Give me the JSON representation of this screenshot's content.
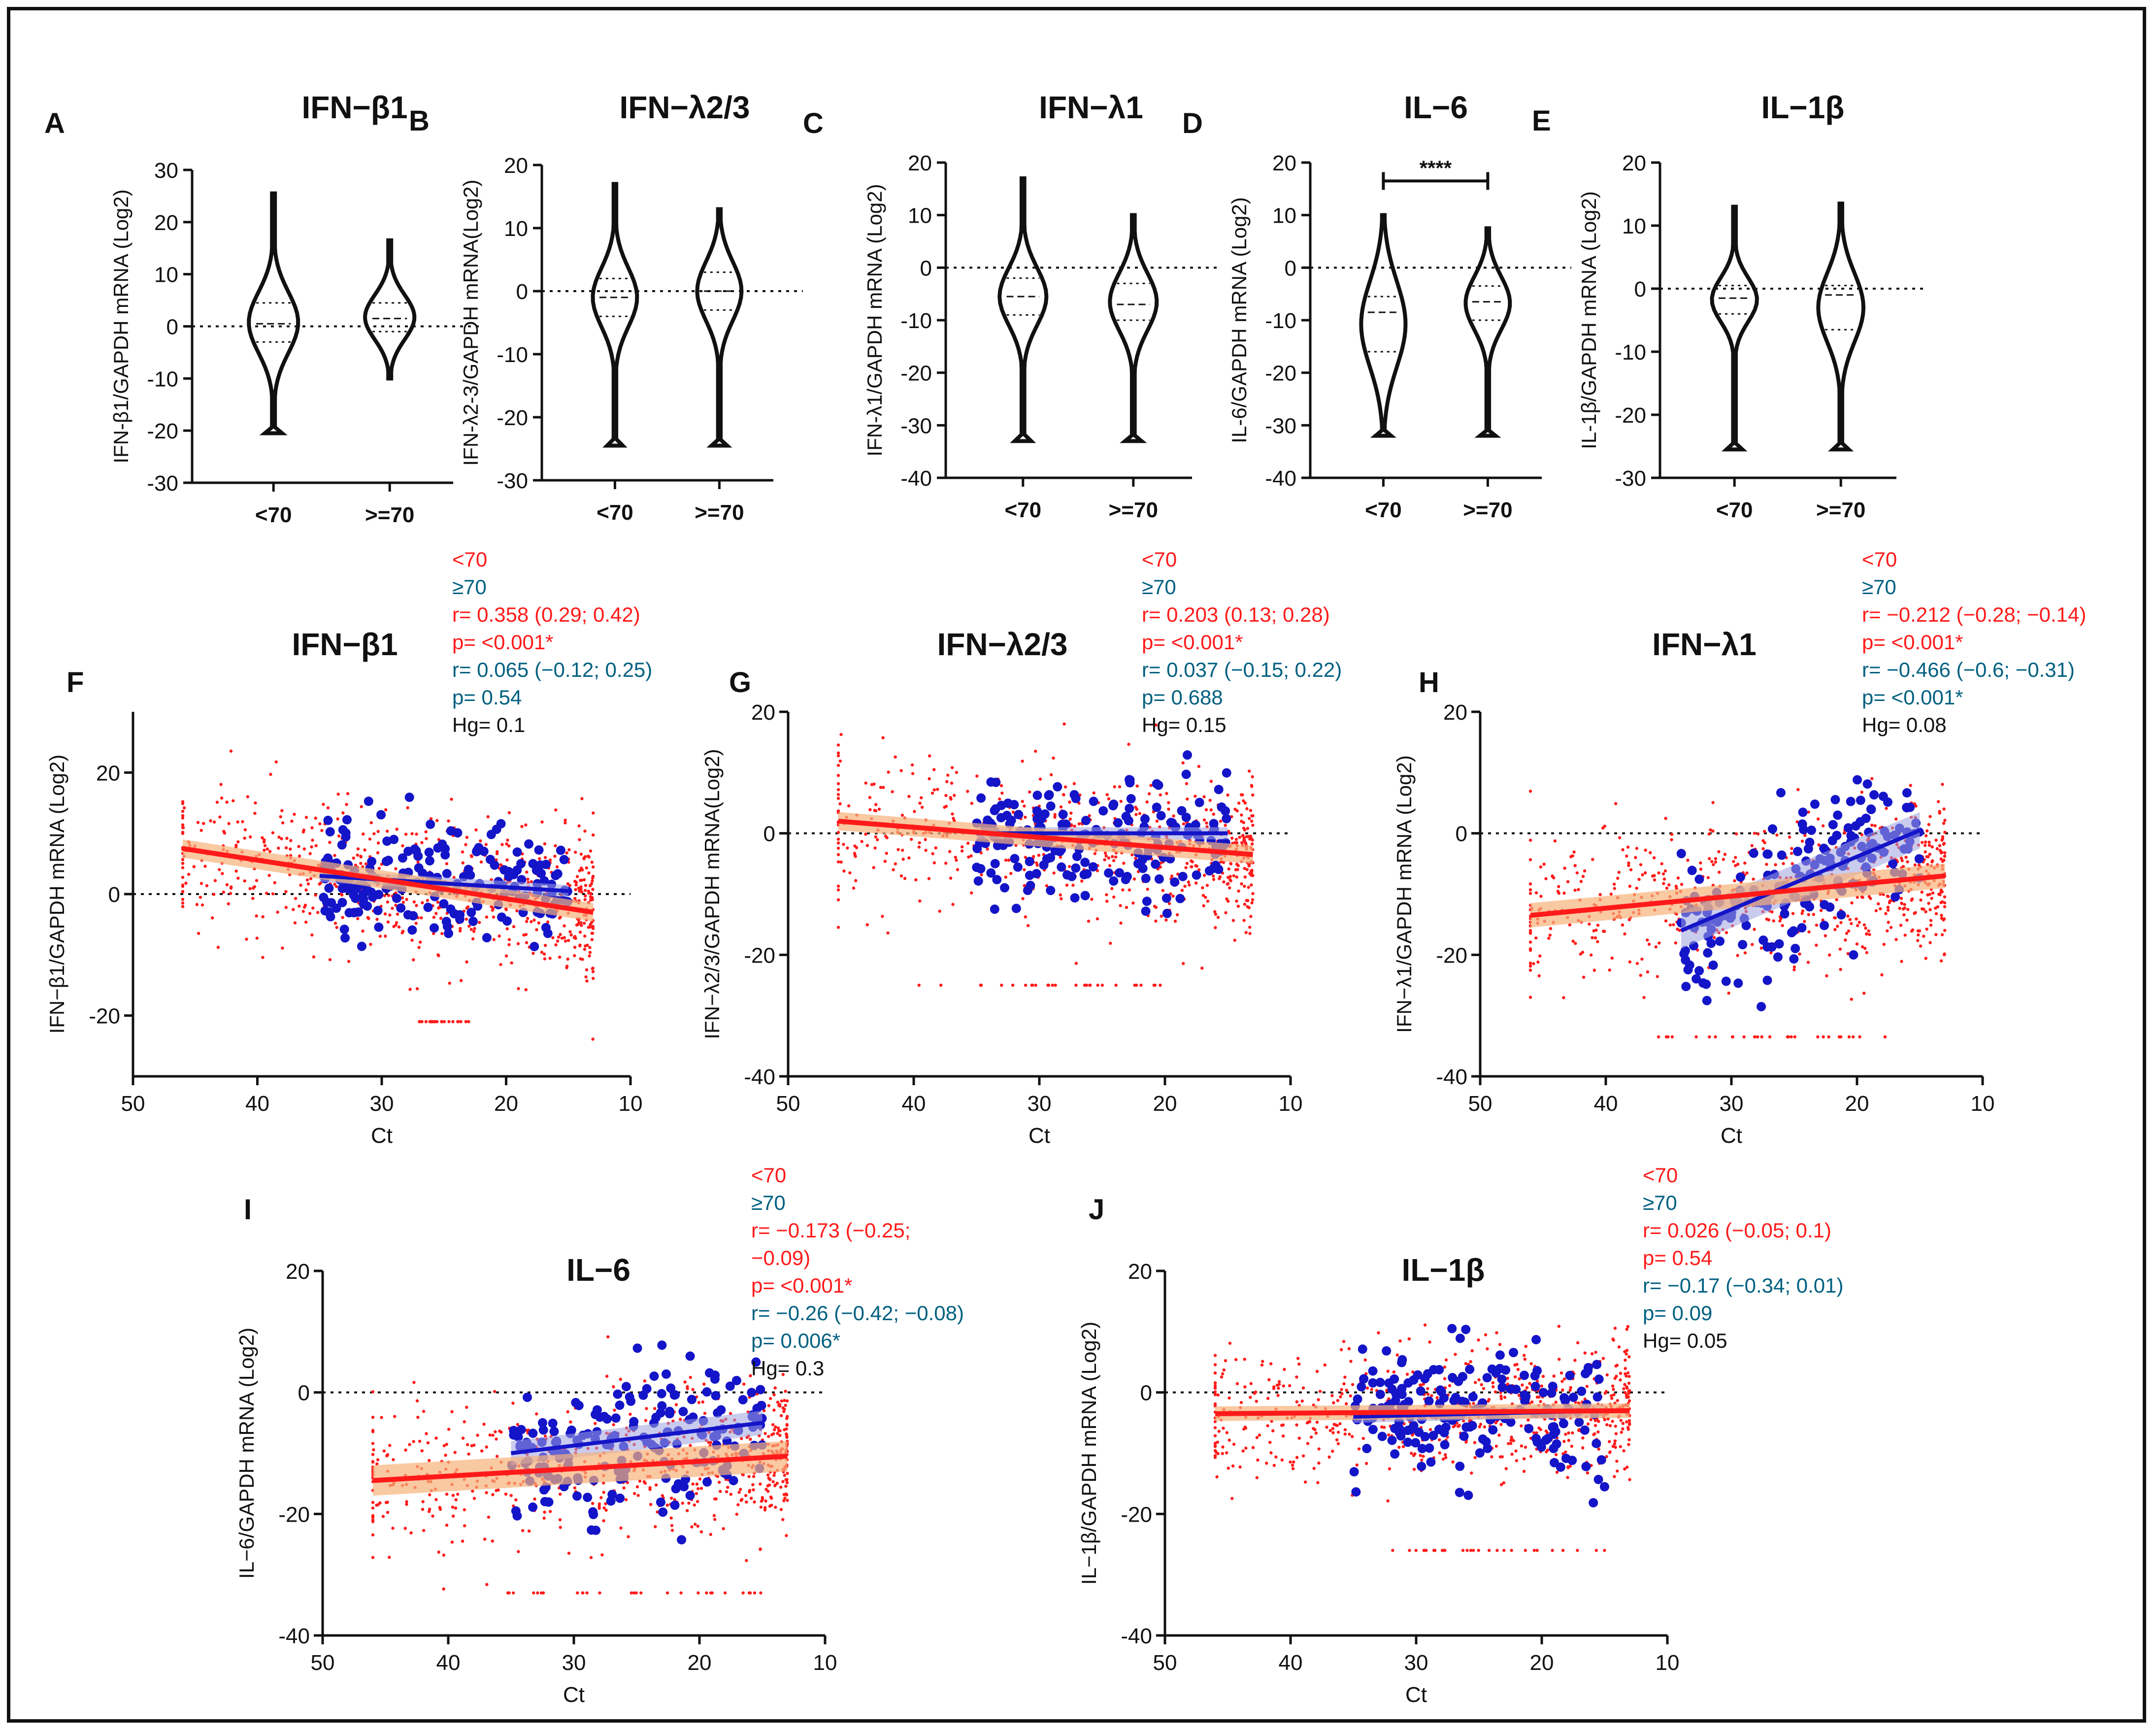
{
  "figure": {
    "frame_color": "#111111"
  },
  "colors": {
    "under70": "#ff1a1a",
    "over70": "#1414c8",
    "stat_under70": "#ff1a1a",
    "stat_over70": "#006080",
    "stat_hg": "#111111",
    "band_under70": "#f7b27a",
    "band_over70": "#9fa3e0"
  },
  "chart_data": [
    {
      "panel": "A",
      "type": "violin",
      "title": "IFN−β1",
      "ylabel": "IFN-β1/GAPDH mRNA (Log2)",
      "categories": [
        "<70",
        ">=70"
      ],
      "ylim": [
        -30,
        30
      ],
      "yticks": [
        30,
        20,
        10,
        0,
        -10,
        -20,
        -30
      ],
      "groups": [
        {
          "name": "<70",
          "min": -20.5,
          "q1": -3,
          "median": 0.5,
          "q3": 4.5,
          "max": 25.5
        },
        {
          "name": ">=70",
          "min": -10,
          "q1": -1,
          "median": 1.5,
          "q3": 4.5,
          "max": 16.5
        }
      ]
    },
    {
      "panel": "B",
      "type": "violin",
      "title": "IFN−λ2/3",
      "ylabel": "IFN-λ2-3/GAPDH mRNA(Log2)",
      "categories": [
        "<70",
        ">=70"
      ],
      "ylim": [
        -30,
        20
      ],
      "yticks": [
        20,
        10,
        0,
        -10,
        -20,
        -30
      ],
      "groups": [
        {
          "name": "<70",
          "min": -24.5,
          "q1": -4,
          "median": -1,
          "q3": 2,
          "max": 17
        },
        {
          "name": ">=70",
          "min": -24.5,
          "q1": -3,
          "median": 0,
          "q3": 3,
          "max": 13
        }
      ]
    },
    {
      "panel": "C",
      "type": "violin",
      "title": "IFN−λ1",
      "ylabel": "IFN-λ1/GAPDH mRNA (Log2)",
      "categories": [
        "<70",
        ">=70"
      ],
      "ylim": [
        -40,
        20
      ],
      "yticks": [
        20,
        10,
        0,
        -10,
        -20,
        -30,
        -40
      ],
      "groups": [
        {
          "name": "<70",
          "min": -33,
          "q1": -9,
          "median": -5.5,
          "q3": -2,
          "max": 17
        },
        {
          "name": ">=70",
          "min": -33,
          "q1": -10,
          "median": -7,
          "q3": -3,
          "max": 10
        }
      ]
    },
    {
      "panel": "D",
      "type": "violin",
      "title": "IL−6",
      "ylabel": "IL-6/GAPDH mRNA (Log2)",
      "categories": [
        "<70",
        ">=70"
      ],
      "ylim": [
        -40,
        20
      ],
      "yticks": [
        20,
        10,
        0,
        -10,
        -20,
        -30,
        -40
      ],
      "significance": "****",
      "groups": [
        {
          "name": "<70",
          "min": -32,
          "q1": -16,
          "median": -8.5,
          "q3": -5.5,
          "max": 10
        },
        {
          "name": ">=70",
          "min": -32,
          "q1": -10,
          "median": -6.5,
          "q3": -3.5,
          "max": 7.5
        }
      ]
    },
    {
      "panel": "E",
      "type": "violin",
      "title": "IL−1β",
      "ylabel": "IL-1β/GAPDH mRNA (Log2)",
      "categories": [
        "<70",
        ">=70"
      ],
      "ylim": [
        -30,
        20
      ],
      "yticks": [
        20,
        10,
        0,
        -10,
        -20,
        -30
      ],
      "groups": [
        {
          "name": "<70",
          "min": -25.5,
          "q1": -4,
          "median": -1.5,
          "q3": 0.5,
          "max": 13
        },
        {
          "name": ">=70",
          "min": -25.5,
          "q1": -6.5,
          "median": -1,
          "q3": 0.5,
          "max": 13.5
        }
      ]
    },
    {
      "panel": "F",
      "type": "scatter",
      "title": "IFN−β1",
      "xlabel": "Ct",
      "ylabel": "IFN−β1/GAPDH mRNA (Log2)",
      "xlim": [
        50,
        10
      ],
      "ylim": [
        -30,
        30
      ],
      "xticks": [
        50,
        40,
        30,
        20,
        10
      ],
      "yticks": [
        20,
        0,
        -20
      ],
      "series": [
        {
          "name": "<70",
          "fit": [
            [
              46,
              7.5
            ],
            [
              13,
              -3
            ]
          ],
          "band": 1.5,
          "xrange": [
            13,
            46
          ],
          "spread": 6,
          "lowfloor": [
            -21,
            [
              23,
              27
            ]
          ]
        },
        {
          "name": "≥70",
          "fit": [
            [
              35,
              3
            ],
            [
              15,
              0.5
            ]
          ],
          "band": 1.0,
          "xrange": [
            15,
            35
          ],
          "spread": 5
        }
      ],
      "stats": [
        "<70",
        "≥70",
        "r= 0.358 (0.29; 0.42)",
        "p= <0.001*",
        "r= 0.065 (−0.12; 0.25)",
        "p= 0.54",
        "Hg= 0.1"
      ]
    },
    {
      "panel": "G",
      "type": "scatter",
      "title": "IFN−λ2/3",
      "xlabel": "Ct",
      "ylabel": "IFN−λ2/3/GAPDH mRNA(Log2)",
      "xlim": [
        50,
        10
      ],
      "ylim": [
        -40,
        20
      ],
      "xticks": [
        50,
        40,
        30,
        20,
        10
      ],
      "yticks": [
        20,
        0,
        -20,
        -40
      ],
      "series": [
        {
          "name": "<70",
          "fit": [
            [
              46,
              2
            ],
            [
              13,
              -3.5
            ]
          ],
          "band": 1.5,
          "xrange": [
            13,
            46
          ],
          "spread": 6,
          "lowfloor": [
            -25,
            [
              20,
              40
            ]
          ]
        },
        {
          "name": "≥70",
          "fit": [
            [
              35,
              0
            ],
            [
              15,
              0
            ]
          ],
          "band": 1.0,
          "xrange": [
            15,
            35
          ],
          "spread": 5
        }
      ],
      "stats": [
        "<70",
        "≥70",
        "r= 0.203 (0.13; 0.28)",
        "p= <0.001*",
        "r= 0.037 (−0.15; 0.22)",
        "p= 0.688",
        "Hg= 0.15"
      ]
    },
    {
      "panel": "H",
      "type": "scatter",
      "title": "IFN−λ1",
      "xlabel": "Ct",
      "ylabel": "IFN−λ1/GAPDH mRNA (Log2)",
      "xlim": [
        50,
        10
      ],
      "ylim": [
        -40,
        20
      ],
      "xticks": [
        50,
        40,
        30,
        20,
        10
      ],
      "yticks": [
        20,
        0,
        -20,
        -40
      ],
      "series": [
        {
          "name": "<70",
          "fit": [
            [
              46,
              -13.5
            ],
            [
              13,
              -7
            ]
          ],
          "band": 2.0,
          "xrange": [
            13,
            46
          ],
          "spread": 6,
          "lowfloor": [
            -33.5,
            [
              17,
              36
            ]
          ]
        },
        {
          "name": "≥70",
          "fit": [
            [
              34,
              -16
            ],
            [
              15,
              0.5
            ]
          ],
          "band": 3.0,
          "xrange": [
            15,
            34
          ],
          "spread": 6
        }
      ],
      "stats": [
        "<70",
        "≥70",
        "r= −0.212 (−0.28; −0.14)",
        "p= <0.001*",
        "r= −0.466 (−0.6; −0.31)",
        "p= <0.001*",
        "Hg= 0.08"
      ]
    },
    {
      "panel": "I",
      "type": "scatter",
      "title": "IL−6",
      "xlabel": "Ct",
      "ylabel": "IL−6/GAPDH mRNA (Log2)",
      "xlim": [
        50,
        10
      ],
      "ylim": [
        -40,
        20
      ],
      "xticks": [
        50,
        40,
        30,
        20,
        10
      ],
      "yticks": [
        20,
        0,
        -20,
        -40
      ],
      "series": [
        {
          "name": "<70",
          "fit": [
            [
              46,
              -14.5
            ],
            [
              13,
              -10.5
            ]
          ],
          "band": 2.5,
          "xrange": [
            13,
            46
          ],
          "spread": 6,
          "lowfloor": [
            -33,
            [
              15,
              37
            ]
          ]
        },
        {
          "name": "≥70",
          "fit": [
            [
              35,
              -10
            ],
            [
              15,
              -5
            ]
          ],
          "band": 2.0,
          "xrange": [
            15,
            35
          ],
          "spread": 6
        }
      ],
      "stats": [
        "<70",
        "≥70",
        "r= −0.173 (−0.25;",
        "−0.09)",
        "p= <0.001*",
        "r= −0.26 (−0.42; −0.08)",
        "p= 0.006*",
        "Hg= 0.3"
      ]
    },
    {
      "panel": "J",
      "type": "scatter",
      "title": "IL−1β",
      "xlabel": "Ct",
      "ylabel": "IL−1β/GAPDH mRNA (Log2)",
      "xlim": [
        50,
        10
      ],
      "ylim": [
        -40,
        20
      ],
      "xticks": [
        50,
        40,
        30,
        20,
        10
      ],
      "yticks": [
        20,
        0,
        -20,
        -40
      ],
      "series": [
        {
          "name": "<70",
          "fit": [
            [
              46,
              -3.5
            ],
            [
              13,
              -3
            ]
          ],
          "band": 1.2,
          "xrange": [
            13,
            46
          ],
          "spread": 5,
          "lowfloor": [
            -26,
            [
              15,
              32
            ]
          ]
        },
        {
          "name": "≥70",
          "fit": [
            [
              35,
              -4
            ],
            [
              15,
              -3
            ]
          ],
          "band": 1.0,
          "xrange": [
            15,
            35
          ],
          "spread": 5
        }
      ],
      "stats": [
        "<70",
        "≥70",
        "r= 0.026 (−0.05; 0.1)",
        "p= 0.54",
        "r= −0.17 (−0.34; 0.01)",
        "p= 0.09",
        "Hg= 0.05"
      ]
    }
  ]
}
